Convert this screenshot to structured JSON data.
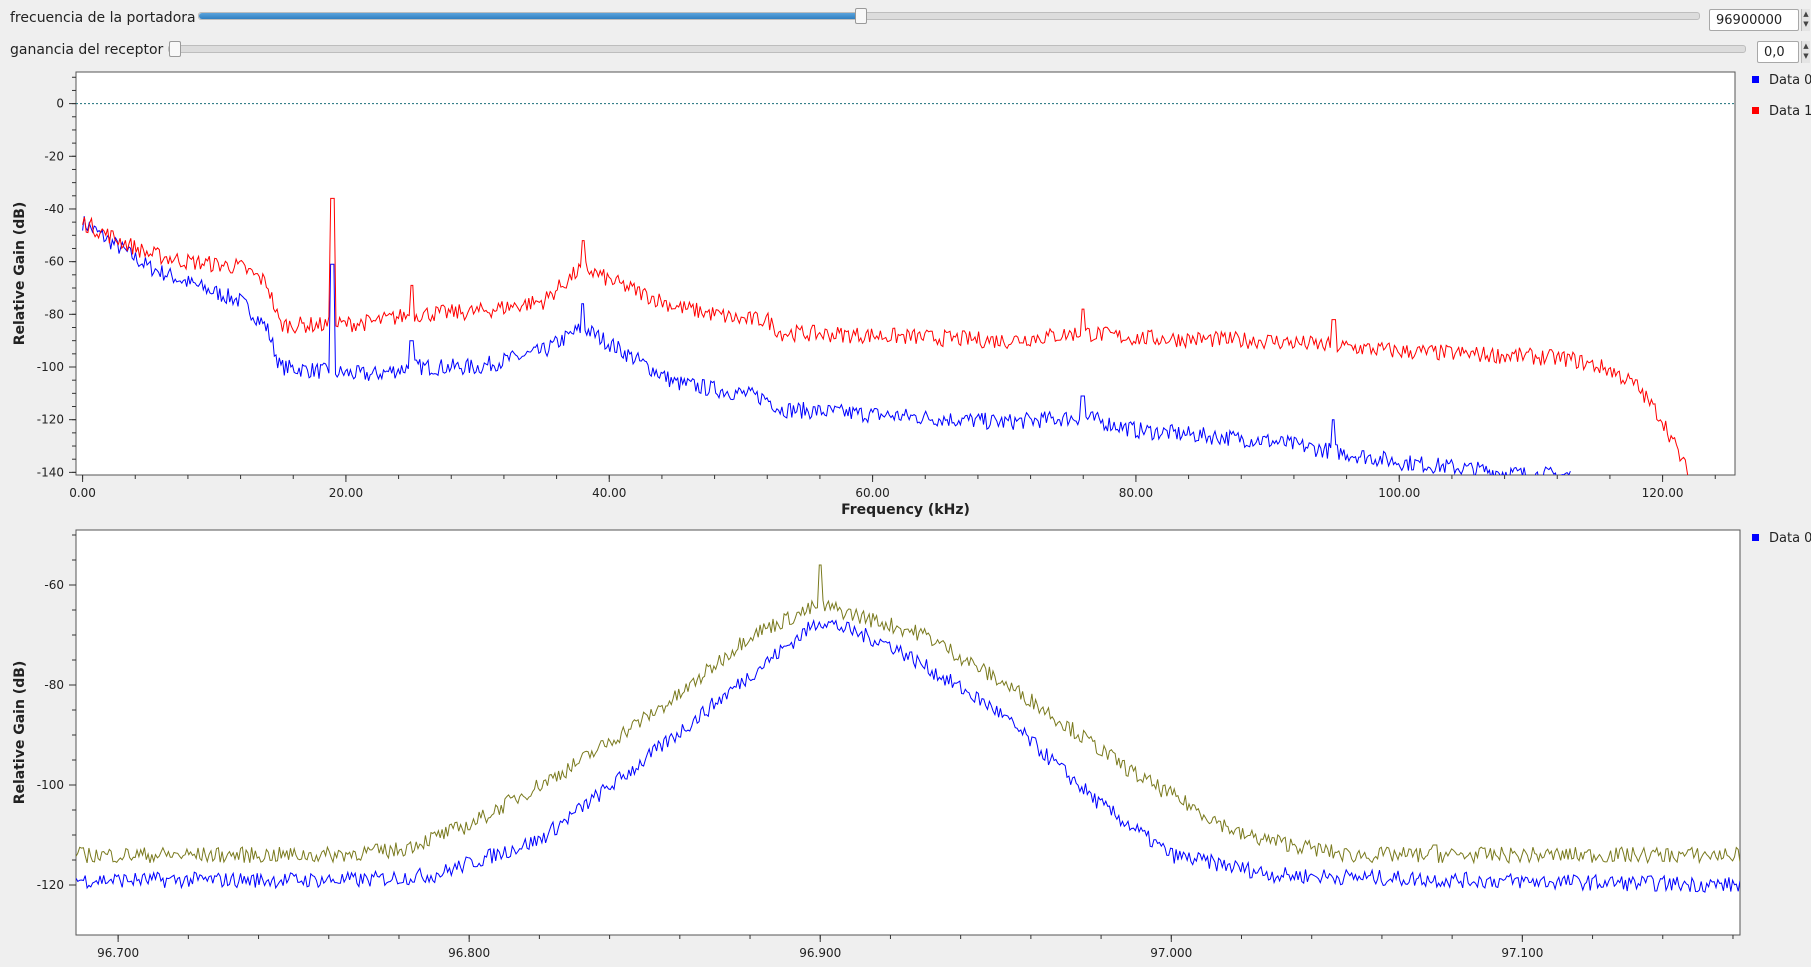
{
  "controls": {
    "carrier": {
      "label": "frecuencia de la portadora",
      "value": "96900000",
      "position_fraction": 0.44
    },
    "gain": {
      "label": "ganancia del receptor",
      "value": "0,0",
      "position_fraction": 0.0
    }
  },
  "icons": {
    "spin_up": "▲",
    "spin_down": "▼"
  },
  "chart_data": [
    {
      "type": "line",
      "xlabel": "Frequency (kHz)",
      "ylabel": "Relative Gain (dB)",
      "xlim": [
        -0.5,
        125.5
      ],
      "ylim": [
        -141,
        12
      ],
      "x_ticks": [
        0,
        20,
        40,
        60,
        80,
        100,
        120
      ],
      "x_tick_labels": [
        "0.00",
        "20.00",
        "40.00",
        "60.00",
        "80.00",
        "100.00",
        "120.00"
      ],
      "y_ticks": [
        0,
        -20,
        -40,
        -60,
        -80,
        -100,
        -120,
        -140
      ],
      "y_tick_labels": [
        "0",
        "-20",
        "-40",
        "-60",
        "-80",
        "-100",
        "-120",
        "-140"
      ],
      "reference_line": 0,
      "grid": false,
      "legend": "top-right",
      "series": [
        {
          "name": "Data 0",
          "color": "#0000ff",
          "x": [
            0,
            2,
            5,
            8,
            12,
            14,
            15,
            19,
            22,
            25,
            30,
            35,
            38,
            40,
            45,
            50,
            52,
            53,
            60,
            70,
            76,
            80,
            90,
            100,
            110,
            113
          ],
          "y": [
            -45,
            -52,
            -62,
            -68,
            -75,
            -85,
            -100,
            -102,
            -103,
            -100,
            -100,
            -94,
            -85,
            -91,
            -106,
            -110,
            -112,
            -116,
            -118,
            -121,
            -119,
            -124,
            -128,
            -136,
            -141,
            -141
          ],
          "spikes": [
            [
              19,
              -61
            ],
            [
              25,
              -90
            ],
            [
              38,
              -76
            ],
            [
              76,
              -111
            ],
            [
              95,
              -120
            ]
          ]
        },
        {
          "name": "Data 1",
          "color": "#ff0000",
          "x": [
            0,
            2,
            5,
            8,
            12,
            14,
            15,
            19,
            22,
            25,
            30,
            35,
            38,
            40,
            45,
            50,
            52,
            53,
            60,
            70,
            76,
            80,
            90,
            100,
            110,
            113,
            116,
            118,
            120,
            122
          ],
          "y": [
            -45,
            -50,
            -57,
            -60,
            -62,
            -68,
            -84,
            -84,
            -83,
            -80,
            -79,
            -75,
            -62,
            -67,
            -77,
            -82,
            -82,
            -87,
            -88,
            -90,
            -87,
            -89,
            -90,
            -94,
            -96,
            -97,
            -101,
            -107,
            -120,
            -141
          ],
          "spikes": [
            [
              19,
              -36
            ],
            [
              25,
              -69
            ],
            [
              38,
              -52
            ],
            [
              76,
              -78
            ],
            [
              95,
              -82
            ]
          ]
        }
      ]
    },
    {
      "type": "line",
      "xlabel": "",
      "ylabel": "Relative Gain (dB)",
      "xlim": [
        96.688,
        97.162
      ],
      "ylim": [
        -130,
        -49
      ],
      "x_ticks": [
        96.7,
        96.8,
        96.9,
        97.0,
        97.1
      ],
      "x_tick_labels": [
        "96.700",
        "96.800",
        "96.900",
        "97.000",
        "97.100"
      ],
      "y_ticks": [
        -60,
        -80,
        -100,
        -120
      ],
      "y_tick_labels": [
        "-60",
        "-80",
        "-100",
        "-120"
      ],
      "grid": false,
      "legend": "top-right",
      "series": [
        {
          "name": "Data 0",
          "color": "#0000ff",
          "x": [
            96.688,
            96.77,
            96.79,
            96.82,
            96.85,
            96.88,
            96.9,
            96.92,
            96.95,
            96.98,
            97.0,
            97.03,
            97.08,
            97.162
          ],
          "y": [
            -119,
            -119,
            -118,
            -111,
            -95,
            -78,
            -67,
            -72,
            -85,
            -104,
            -114,
            -118,
            -119,
            -120
          ],
          "spikes": []
        },
        {
          "name": "",
          "color": "#7a7a1e",
          "x": [
            96.688,
            96.76,
            96.78,
            96.8,
            96.83,
            96.86,
            96.88,
            96.9,
            96.93,
            96.96,
            96.99,
            97.02,
            97.05,
            97.162
          ],
          "y": [
            -114,
            -114,
            -113,
            -108,
            -96,
            -82,
            -70,
            -64,
            -70,
            -83,
            -98,
            -110,
            -114,
            -114
          ],
          "spikes": [
            [
              96.9,
              -56
            ],
            [
              97.075,
              -112
            ]
          ]
        }
      ]
    }
  ]
}
